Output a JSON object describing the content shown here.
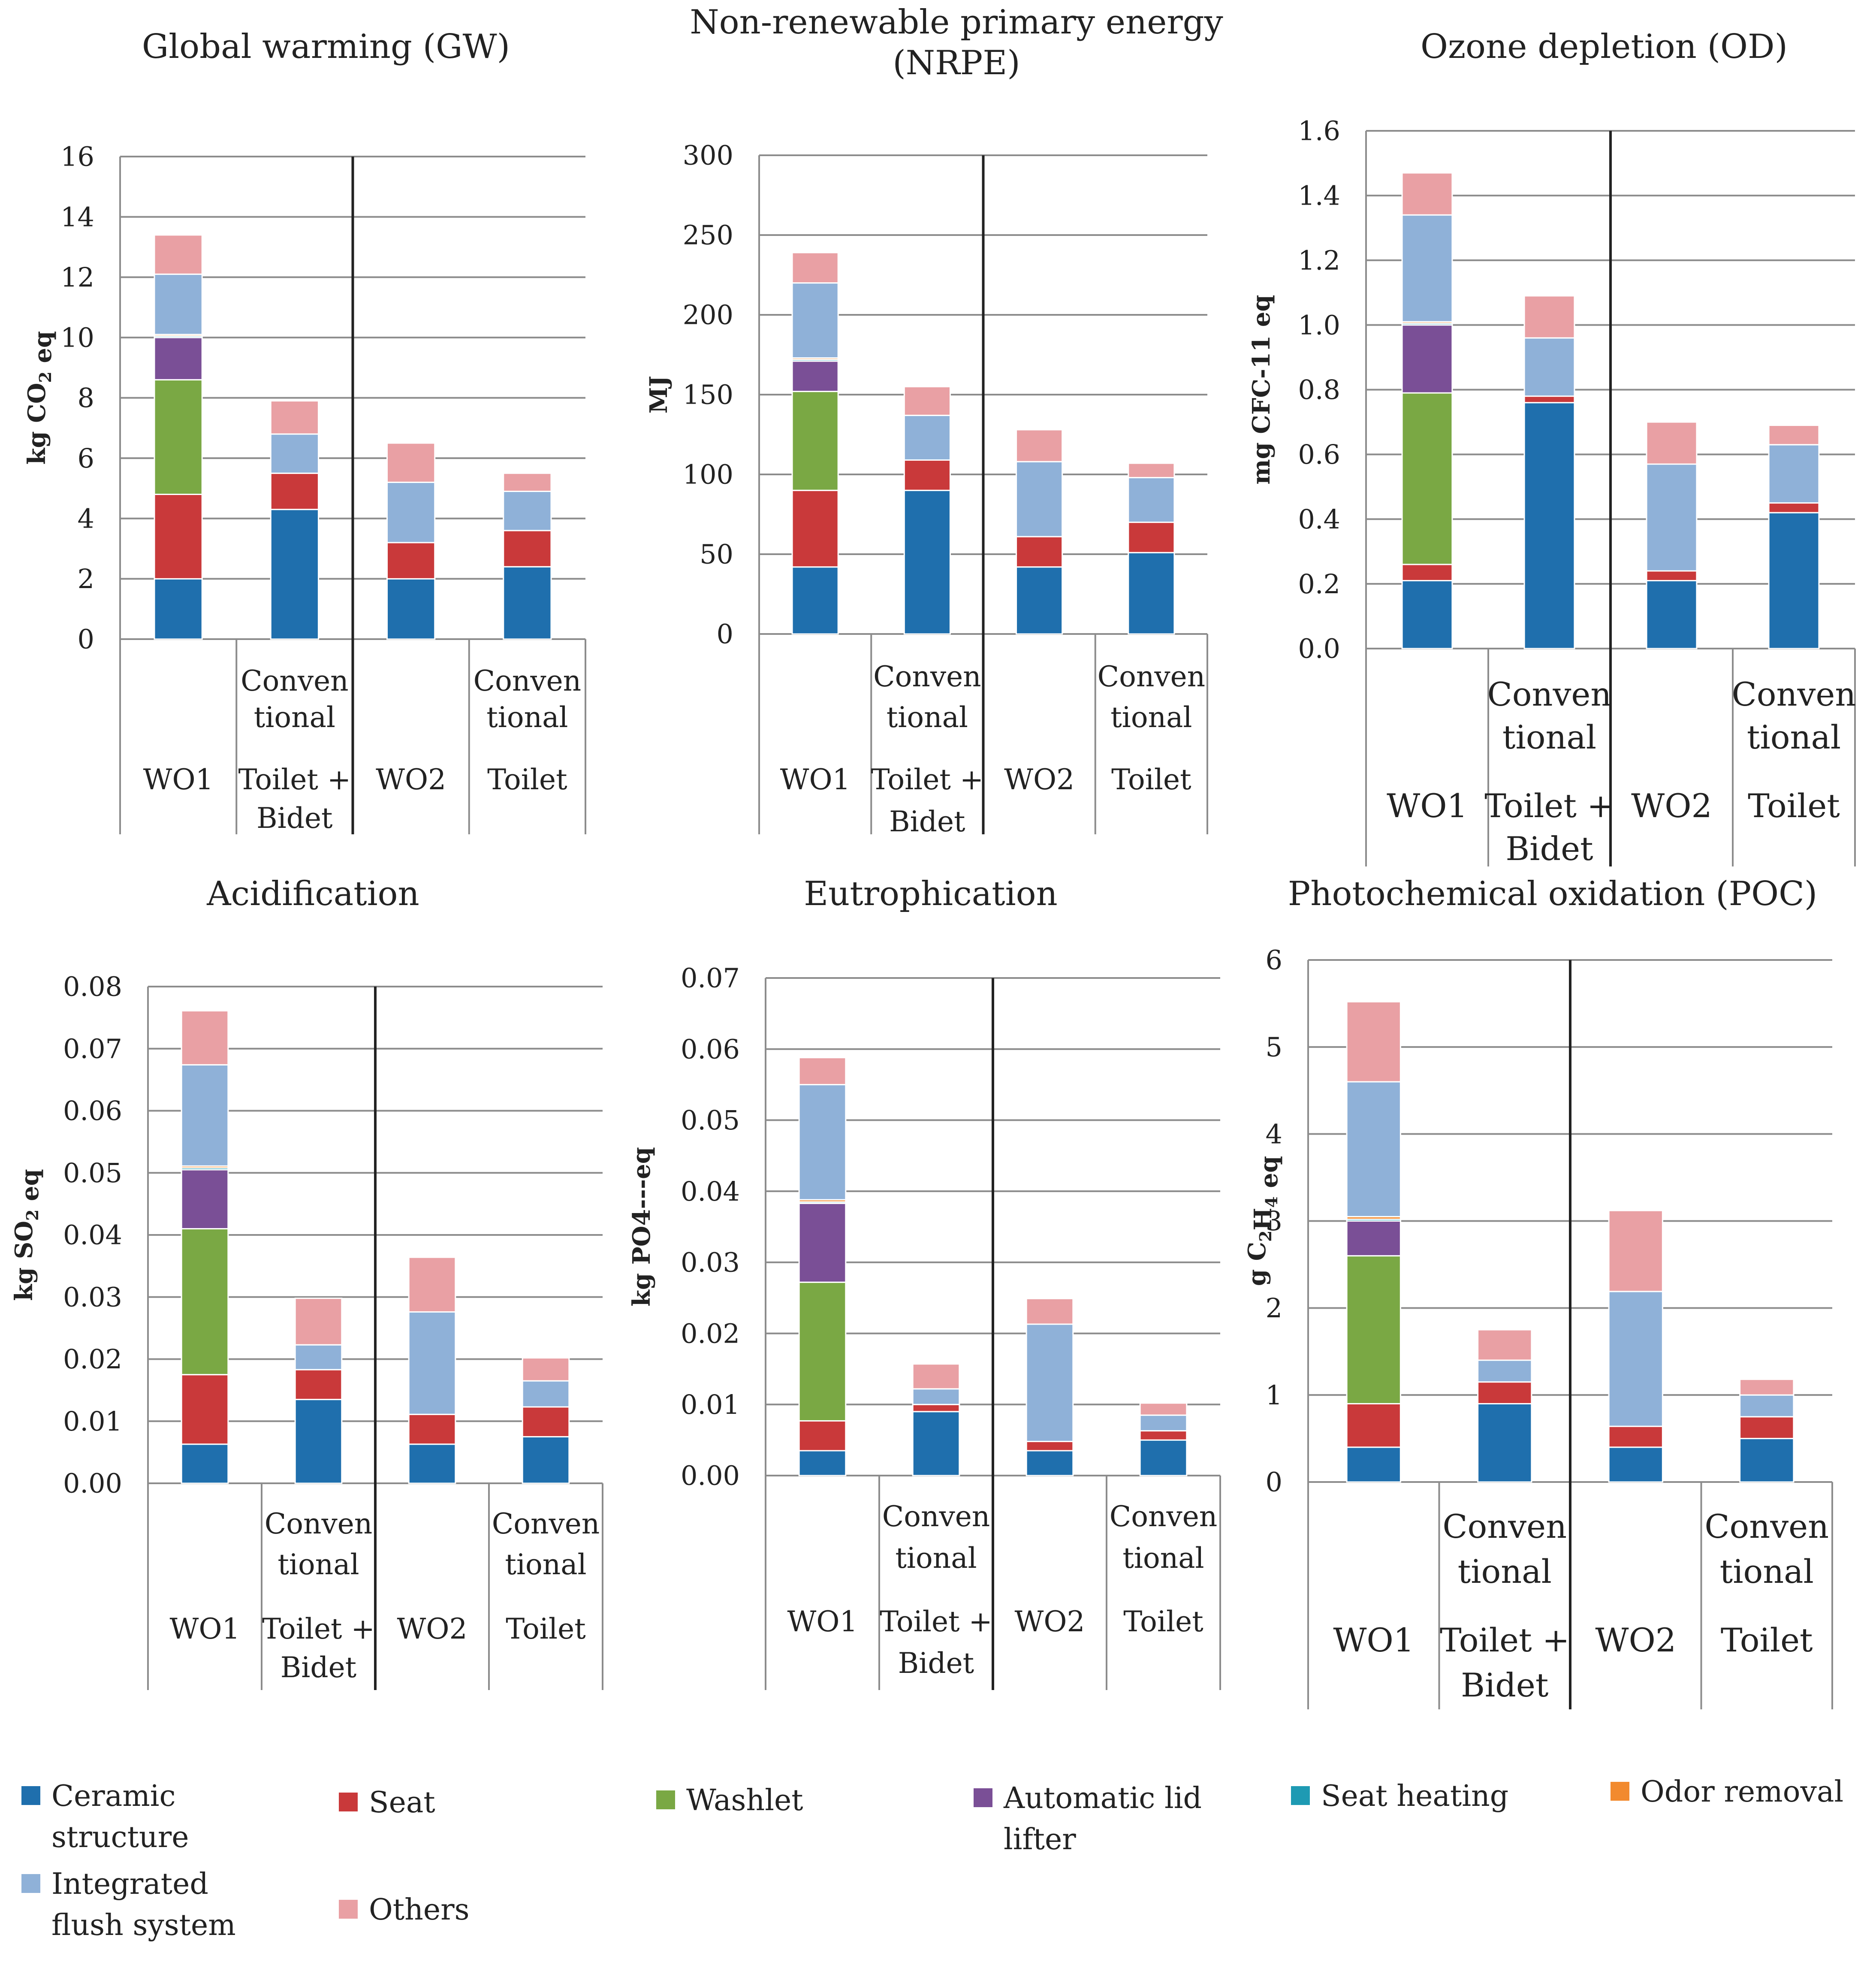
{
  "chart_data": [
    {
      "type": "bar",
      "stacked": true,
      "title": "Global warming (GW)",
      "ylabel_main": "kg CO",
      "ylabel_sub": "2",
      "ylabel_tail": " eq",
      "ylim": [
        0,
        16
      ],
      "ticks": [
        "0",
        "2",
        "4",
        "6",
        "8",
        "10",
        "12",
        "14",
        "16"
      ],
      "cat_lines": [
        [
          "",
          "WO1"
        ],
        [
          "Conven",
          "tional",
          "Toilet +",
          "Bidet"
        ],
        [
          "",
          "WO2"
        ],
        [
          "Conven",
          "tional",
          "Toilet"
        ]
      ],
      "series": [
        {
          "name": "Ceramic structure",
          "values": [
            2.0,
            4.3,
            2.0,
            2.4
          ]
        },
        {
          "name": "Seat",
          "values": [
            2.8,
            1.2,
            1.2,
            1.2
          ]
        },
        {
          "name": "Washlet",
          "values": [
            3.8,
            0,
            0,
            0
          ]
        },
        {
          "name": "Automatic lid lifter",
          "values": [
            1.4,
            0,
            0,
            0
          ]
        },
        {
          "name": "Seat heating",
          "values": [
            0.05,
            0,
            0,
            0
          ]
        },
        {
          "name": "Odor removal",
          "values": [
            0.05,
            0,
            0,
            0
          ]
        },
        {
          "name": "Integrated flush system",
          "values": [
            2.0,
            1.3,
            2.0,
            1.3
          ]
        },
        {
          "name": "Others",
          "values": [
            1.3,
            1.1,
            1.3,
            0.6
          ]
        }
      ]
    },
    {
      "type": "bar",
      "stacked": true,
      "title": "Non-renewable primary energy (NRPE)",
      "title_lines": [
        "Non-renewable primary energy",
        "(NRPE)"
      ],
      "ylabel_main": "MJ",
      "ylabel_sub": "",
      "ylabel_tail": "",
      "ylim": [
        0,
        300
      ],
      "ticks": [
        "0",
        "50",
        "100",
        "150",
        "200",
        "250",
        "300"
      ],
      "cat_lines": [
        [
          "",
          "WO1"
        ],
        [
          "Conven",
          "tional",
          "Toilet +",
          "Bidet"
        ],
        [
          "",
          "WO2"
        ],
        [
          "Conven",
          "tional",
          "Toilet"
        ]
      ],
      "series": [
        {
          "name": "Ceramic structure",
          "values": [
            42,
            90,
            42,
            51
          ]
        },
        {
          "name": "Seat",
          "values": [
            48,
            19,
            19,
            19
          ]
        },
        {
          "name": "Washlet",
          "values": [
            62,
            0,
            0,
            0
          ]
        },
        {
          "name": "Automatic lid lifter",
          "values": [
            19,
            0,
            0,
            0
          ]
        },
        {
          "name": "Seat heating",
          "values": [
            1,
            0,
            0,
            0
          ]
        },
        {
          "name": "Odor removal",
          "values": [
            1,
            0,
            0,
            0
          ]
        },
        {
          "name": "Integrated flush system",
          "values": [
            47,
            28,
            47,
            28
          ]
        },
        {
          "name": "Others",
          "values": [
            19,
            18,
            20,
            9
          ]
        }
      ]
    },
    {
      "type": "bar",
      "stacked": true,
      "title": "Ozone depletion (OD)",
      "ylabel_main": "mg CFC-11 eq",
      "ylabel_sub": "",
      "ylabel_tail": "",
      "ylim": [
        0,
        1.6
      ],
      "ticks": [
        "0.0",
        "0.2",
        "0.4",
        "0.6",
        "0.8",
        "1.0",
        "1.2",
        "1.4",
        "1.6"
      ],
      "cat_lines": [
        [
          "",
          "WO1"
        ],
        [
          "Conven",
          "tional",
          "Toilet +",
          "Bidet"
        ],
        [
          "",
          "WO2"
        ],
        [
          "Conven",
          "tional",
          "Toilet"
        ]
      ],
      "series": [
        {
          "name": "Ceramic structure",
          "values": [
            0.21,
            0.76,
            0.21,
            0.42
          ]
        },
        {
          "name": "Seat",
          "values": [
            0.05,
            0.02,
            0.03,
            0.03
          ]
        },
        {
          "name": "Washlet",
          "values": [
            0.53,
            0,
            0,
            0
          ]
        },
        {
          "name": "Automatic lid lifter",
          "values": [
            0.21,
            0,
            0,
            0
          ]
        },
        {
          "name": "Seat heating",
          "values": [
            0.005,
            0,
            0,
            0
          ]
        },
        {
          "name": "Odor removal",
          "values": [
            0.005,
            0,
            0,
            0
          ]
        },
        {
          "name": "Integrated flush system",
          "values": [
            0.33,
            0.18,
            0.33,
            0.18
          ]
        },
        {
          "name": "Others",
          "values": [
            0.13,
            0.13,
            0.13,
            0.06
          ]
        }
      ]
    },
    {
      "type": "bar",
      "stacked": true,
      "title": "Acidification",
      "ylabel_main": "kg SO",
      "ylabel_sub": "2",
      "ylabel_tail": " eq",
      "ylim": [
        0,
        0.08
      ],
      "ticks": [
        "0.00",
        "0.01",
        "0.02",
        "0.03",
        "0.04",
        "0.05",
        "0.06",
        "0.07",
        "0.08"
      ],
      "cat_lines": [
        [
          "",
          "WO1"
        ],
        [
          "Conven",
          "tional",
          "Toilet +",
          "Bidet"
        ],
        [
          "",
          "WO2"
        ],
        [
          "Conven",
          "tional",
          "Toilet"
        ]
      ],
      "series": [
        {
          "name": "Ceramic structure",
          "values": [
            0.0063,
            0.0135,
            0.0063,
            0.0075
          ]
        },
        {
          "name": "Seat",
          "values": [
            0.0112,
            0.0048,
            0.0048,
            0.0048
          ]
        },
        {
          "name": "Washlet",
          "values": [
            0.0235,
            0,
            0,
            0
          ]
        },
        {
          "name": "Automatic lid lifter",
          "values": [
            0.0095,
            0,
            0,
            0
          ]
        },
        {
          "name": "Seat heating",
          "values": [
            0.0003,
            0,
            0,
            0
          ]
        },
        {
          "name": "Odor removal",
          "values": [
            0.0003,
            0,
            0,
            0
          ]
        },
        {
          "name": "Integrated flush system",
          "values": [
            0.0163,
            0.004,
            0.0165,
            0.0042
          ]
        },
        {
          "name": "Others",
          "values": [
            0.0087,
            0.0075,
            0.0088,
            0.0037
          ]
        }
      ]
    },
    {
      "type": "bar",
      "stacked": true,
      "title": "Eutrophication",
      "ylabel_main": "kg PO4---eq",
      "ylabel_sub": "",
      "ylabel_tail": "",
      "ylim": [
        0,
        0.07
      ],
      "ticks": [
        "0.00",
        "0.01",
        "0.02",
        "0.03",
        "0.04",
        "0.05",
        "0.06",
        "0.07"
      ],
      "cat_lines": [
        [
          "",
          "WO1"
        ],
        [
          "Conven",
          "tional",
          "Toilet +",
          "Bidet"
        ],
        [
          "",
          "WO2"
        ],
        [
          "Conven",
          "tional",
          "Toilet"
        ]
      ],
      "series": [
        {
          "name": "Ceramic structure",
          "values": [
            0.0035,
            0.009,
            0.0035,
            0.005
          ]
        },
        {
          "name": "Seat",
          "values": [
            0.0042,
            0.001,
            0.0013,
            0.0013
          ]
        },
        {
          "name": "Washlet",
          "values": [
            0.0195,
            0,
            0,
            0
          ]
        },
        {
          "name": "Automatic lid lifter",
          "values": [
            0.0111,
            0,
            0,
            0
          ]
        },
        {
          "name": "Seat heating",
          "values": [
            0.0002,
            0,
            0,
            0
          ]
        },
        {
          "name": "Odor removal",
          "values": [
            0.0003,
            0,
            0,
            0
          ]
        },
        {
          "name": "Integrated flush system",
          "values": [
            0.0162,
            0.0022,
            0.0165,
            0.0022
          ]
        },
        {
          "name": "Others",
          "values": [
            0.0038,
            0.0035,
            0.0036,
            0.0017
          ]
        }
      ]
    },
    {
      "type": "bar",
      "stacked": true,
      "title": "Photochemical oxidation (POC)",
      "ylabel_main": "g C",
      "ylabel_sub": "2",
      "ylabel_tail": "H",
      "ylabel_sub2": "4",
      "ylabel_tail2": " eq",
      "ylim": [
        0,
        6
      ],
      "ticks": [
        "0",
        "1",
        "2",
        "3",
        "4",
        "5",
        "6"
      ],
      "cat_lines": [
        [
          "",
          "WO1"
        ],
        [
          "Conven",
          "tional",
          "Toilet +",
          "Bidet"
        ],
        [
          "",
          "WO2"
        ],
        [
          "Conven",
          "tional",
          "Toilet"
        ]
      ],
      "series": [
        {
          "name": "Ceramic structure",
          "values": [
            0.4,
            0.9,
            0.4,
            0.5
          ]
        },
        {
          "name": "Seat",
          "values": [
            0.5,
            0.25,
            0.24,
            0.25
          ]
        },
        {
          "name": "Washlet",
          "values": [
            1.7,
            0,
            0,
            0
          ]
        },
        {
          "name": "Automatic lid lifter",
          "values": [
            0.4,
            0,
            0,
            0
          ]
        },
        {
          "name": "Seat heating",
          "values": [
            0.02,
            0,
            0,
            0
          ]
        },
        {
          "name": "Odor removal",
          "values": [
            0.03,
            0,
            0,
            0
          ]
        },
        {
          "name": "Integrated flush system",
          "values": [
            1.55,
            0.25,
            1.55,
            0.25
          ]
        },
        {
          "name": "Others",
          "values": [
            0.92,
            0.35,
            0.93,
            0.18
          ]
        }
      ]
    }
  ],
  "legend": {
    "items": [
      {
        "label": "Ceramic structure",
        "color": "#1f6fad"
      },
      {
        "label": "Seat",
        "color": "#c9393a"
      },
      {
        "label": "Washlet",
        "color": "#7aa844"
      },
      {
        "label": "Automatic lid lifter",
        "color": "#7a4f96"
      },
      {
        "label": "Seat heating",
        "color": "#1e9ab3"
      },
      {
        "label": "Odor removal",
        "color": "#f28a2e"
      },
      {
        "label": "Integrated flush system",
        "color": "#8fb1d8"
      },
      {
        "label": "Others",
        "color": "#e9a0a4"
      }
    ]
  },
  "colors": {
    "grid": "#8c8c8c",
    "axis": "#8c8c8c",
    "divider": "#222222",
    "text": "#222222"
  }
}
